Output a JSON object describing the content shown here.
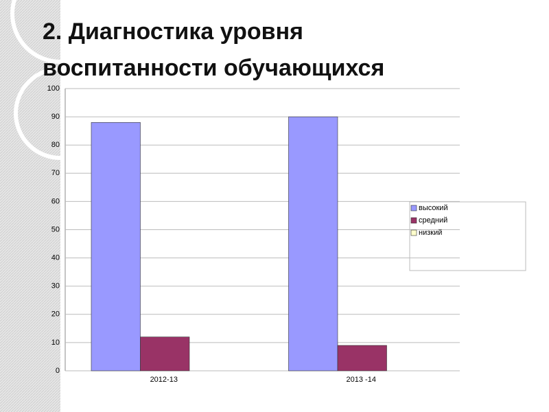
{
  "chart_data": {
    "type": "bar",
    "title": "2. Диагностика уровня воспитанности обучающихся",
    "categories": [
      "2012-13",
      "2013 -14"
    ],
    "series": [
      {
        "name": "высокий",
        "color": "#9999ff",
        "values": [
          88,
          90
        ]
      },
      {
        "name": "средний",
        "color": "#993366",
        "values": [
          12,
          9
        ]
      },
      {
        "name": "низкий",
        "color": "#ffffcc",
        "values": [
          0,
          0
        ]
      }
    ],
    "ylim": [
      0,
      100
    ],
    "yticks": [
      0,
      10,
      20,
      30,
      40,
      50,
      60,
      70,
      80,
      90,
      100
    ],
    "grid": true,
    "legend": "right"
  }
}
